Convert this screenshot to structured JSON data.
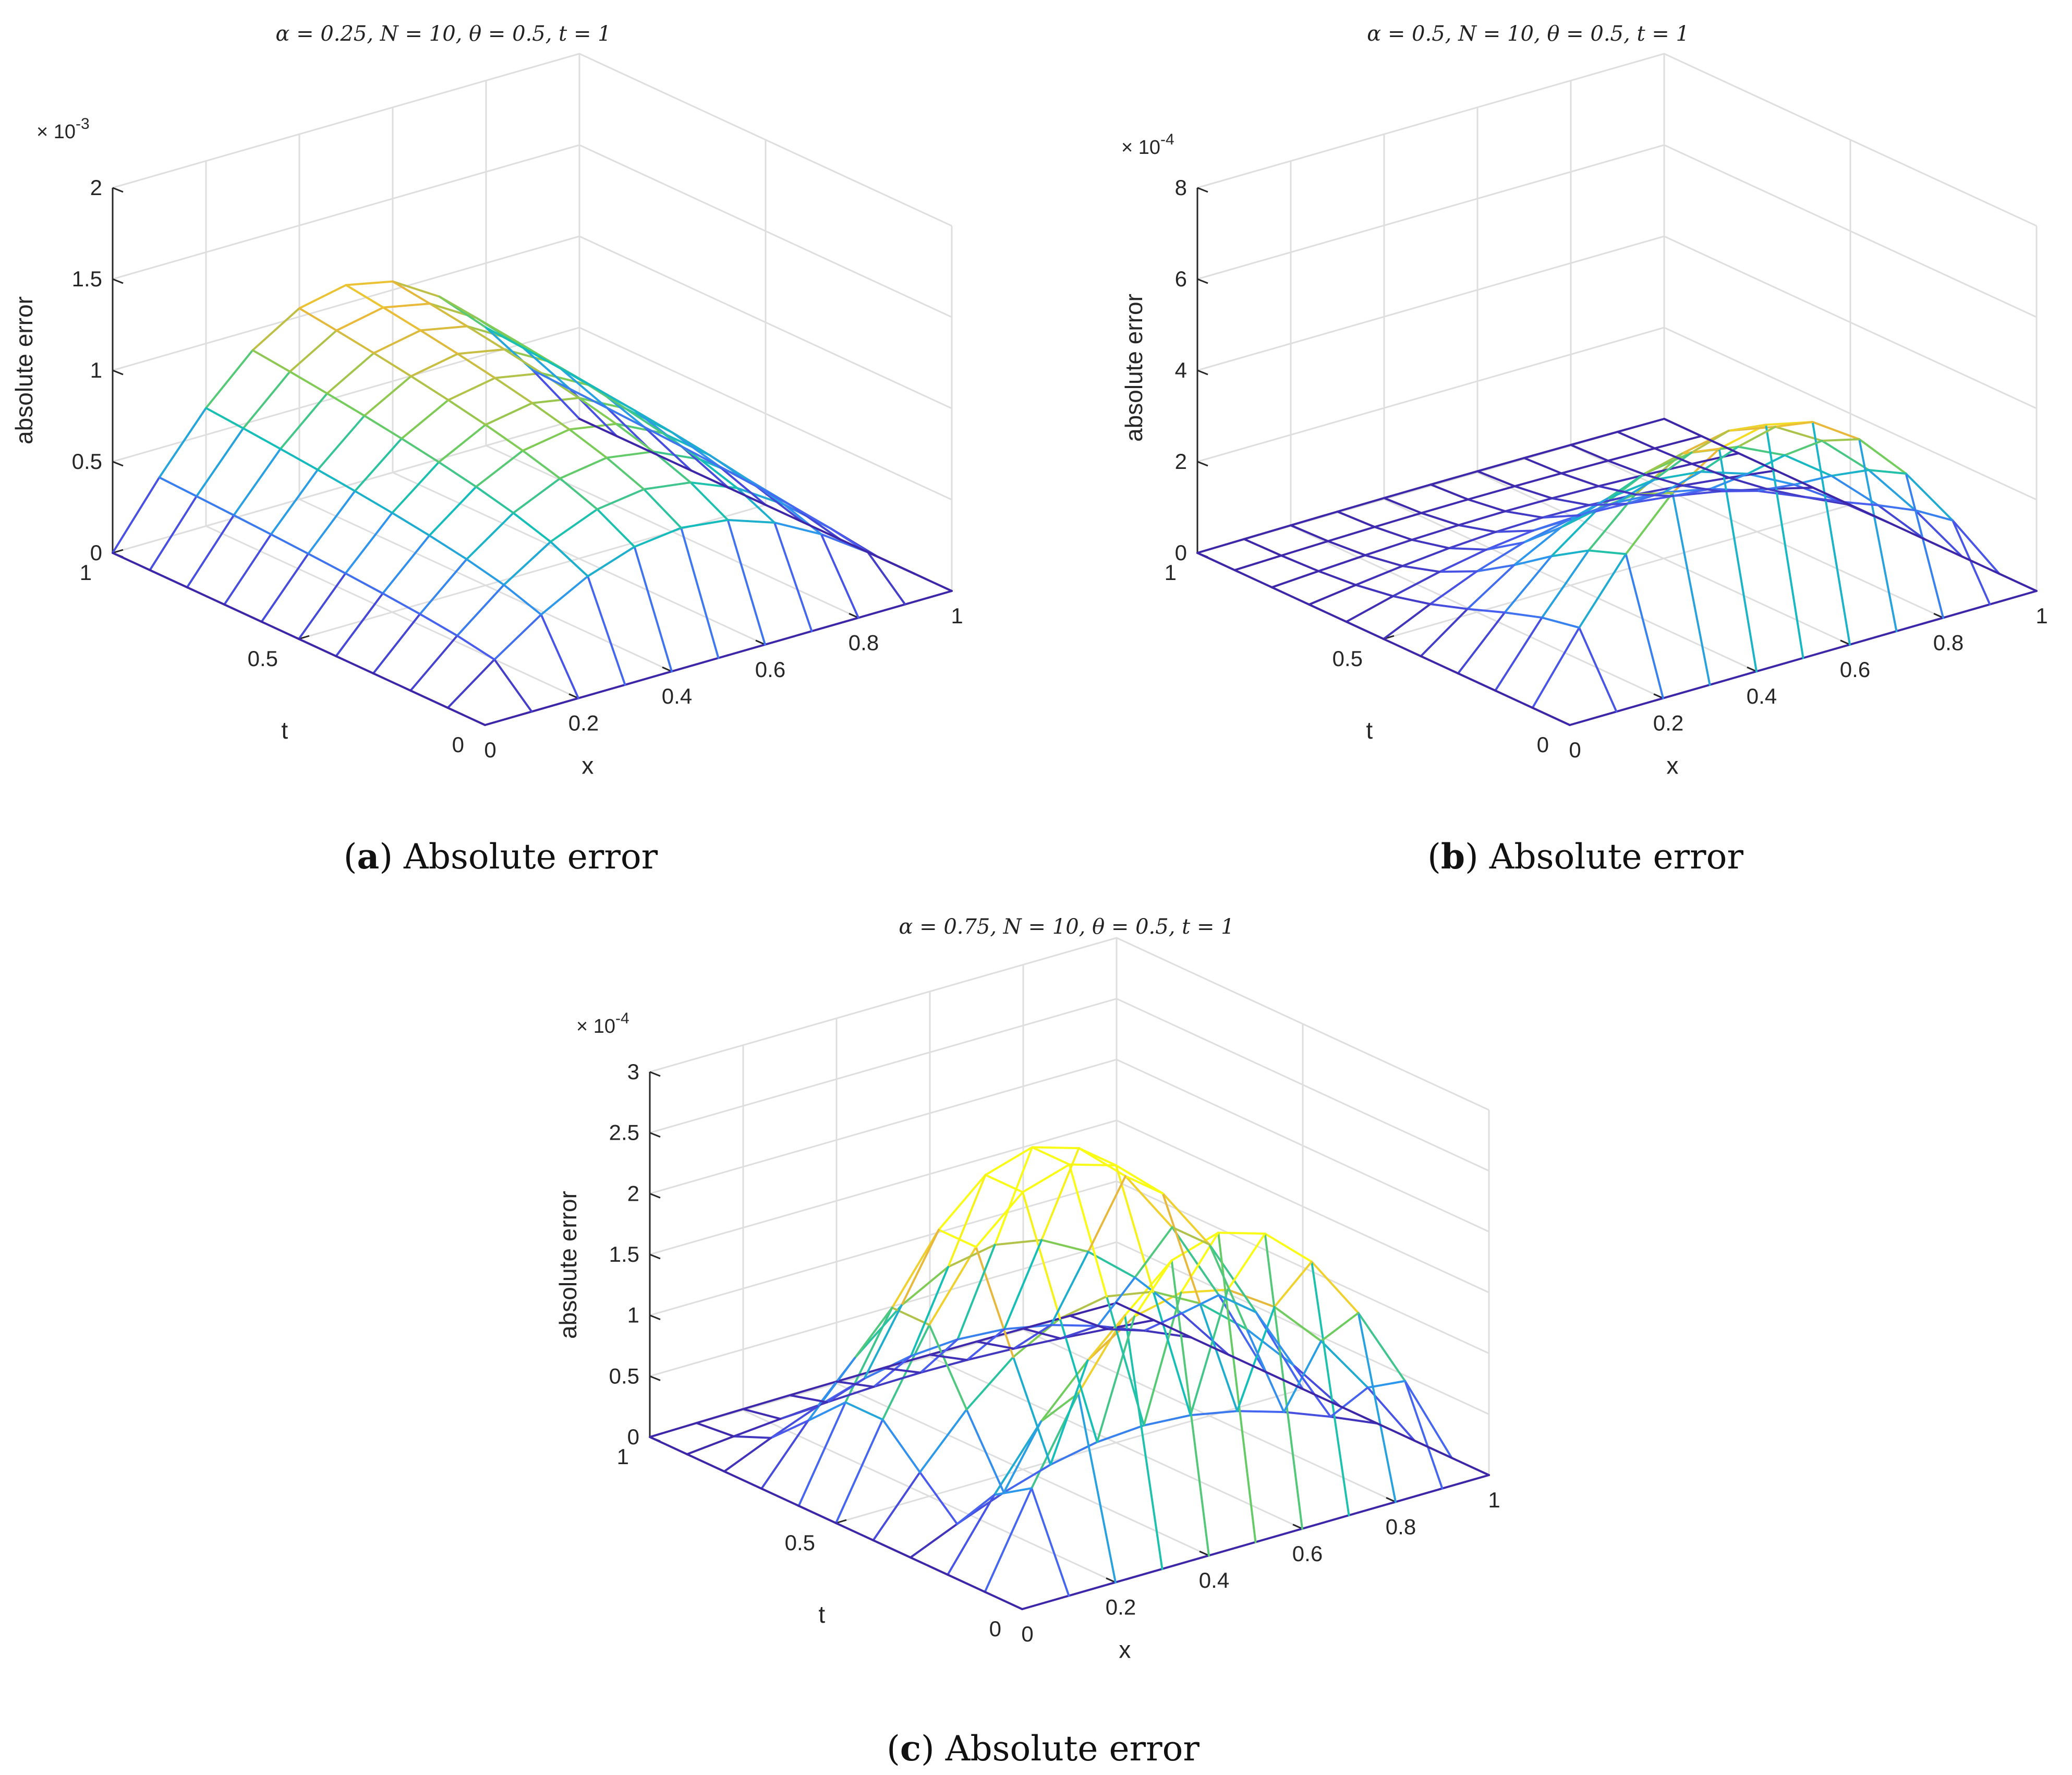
{
  "figure": {
    "colors": {
      "axis": "#262626",
      "grid": "#dedede",
      "colormap": [
        "#3e26a8",
        "#4a5bf0",
        "#2f96ee",
        "#13bfb8",
        "#75cd58",
        "#e9b83a",
        "#f9fb15"
      ]
    }
  },
  "chart_data": [
    {
      "type": "surface",
      "id": "a",
      "title": "α = 0.25, N = 10, θ = 0.5, t = 1",
      "caption_letter": "a",
      "caption_text": "Absolute error",
      "xlabel": "x",
      "ylabel": "t",
      "zlabel": "absolute error",
      "x_ticks": [
        "0",
        "0.2",
        "0.4",
        "0.6",
        "0.8",
        "1"
      ],
      "y_ticks": [
        "0",
        "0.5",
        "1"
      ],
      "z_ticks": [
        "0",
        "0.5",
        "1",
        "1.5",
        "2"
      ],
      "z_exponent_label": "× 10",
      "z_exponent": "-3",
      "xlim": [
        0,
        1
      ],
      "ylim": [
        0,
        1
      ],
      "zlim": [
        0,
        2
      ],
      "x": [
        0,
        0.1,
        0.2,
        0.3,
        0.4,
        0.5,
        0.6,
        0.7,
        0.8,
        0.9,
        1.0
      ],
      "t": [
        0,
        0.1,
        0.2,
        0.3,
        0.4,
        0.5,
        0.6,
        0.7,
        0.8,
        0.9,
        1.0
      ],
      "model": {
        "kind": "tshape",
        "amp": 1.1,
        "xpow": 1,
        "tpow": 0.25
      }
    },
    {
      "type": "surface",
      "id": "b",
      "title": "α = 0.5, N = 10, θ = 0.5, t = 1",
      "caption_letter": "b",
      "caption_text": "Absolute error",
      "xlabel": "x",
      "ylabel": "t",
      "zlabel": "absolute error",
      "x_ticks": [
        "0",
        "0.2",
        "0.4",
        "0.6",
        "0.8",
        "1"
      ],
      "y_ticks": [
        "0",
        "0.5",
        "1"
      ],
      "z_ticks": [
        "0",
        "2",
        "4",
        "6",
        "8"
      ],
      "z_exponent_label": "× 10",
      "z_exponent": "-4",
      "xlim": [
        0,
        1
      ],
      "ylim": [
        0,
        1
      ],
      "zlim": [
        0,
        8
      ],
      "x": [
        0,
        0.1,
        0.2,
        0.3,
        0.4,
        0.5,
        0.6,
        0.7,
        0.8,
        0.9,
        1.0
      ],
      "t": [
        0,
        0.1,
        0.2,
        0.3,
        0.4,
        0.5,
        0.6,
        0.7,
        0.8,
        0.9,
        1.0
      ],
      "model": {
        "kind": "ridge",
        "amp": 4.8,
        "tcenter": 0.05,
        "tsigma": 0.42
      }
    },
    {
      "type": "surface",
      "id": "c",
      "title": "α = 0.75, N = 10, θ = 0.5, t = 1",
      "caption_letter": "c",
      "caption_text": "Absolute error",
      "xlabel": "x",
      "ylabel": "t",
      "zlabel": "absolute error",
      "x_ticks": [
        "0",
        "0.2",
        "0.4",
        "0.6",
        "0.8",
        "1"
      ],
      "y_ticks": [
        "0",
        "0.5",
        "1"
      ],
      "z_ticks": [
        "0",
        "0.5",
        "1",
        "1.5",
        "2",
        "2.5",
        "3"
      ],
      "z_exponent_label": "× 10",
      "z_exponent": "-4",
      "xlim": [
        0,
        1
      ],
      "ylim": [
        0,
        1
      ],
      "zlim": [
        0,
        3
      ],
      "x": [
        0,
        0.1,
        0.2,
        0.3,
        0.4,
        0.5,
        0.6,
        0.7,
        0.8,
        0.9,
        1.0
      ],
      "t": [
        0,
        0.1,
        0.2,
        0.3,
        0.4,
        0.5,
        0.6,
        0.7,
        0.8,
        0.9,
        1.0
      ],
      "model": {
        "kind": "doublebump",
        "amp1": 2.45,
        "c1": 0.12,
        "s1": 0.14,
        "amp2": 2.55,
        "c2": 0.55,
        "s2": 0.2
      }
    }
  ]
}
